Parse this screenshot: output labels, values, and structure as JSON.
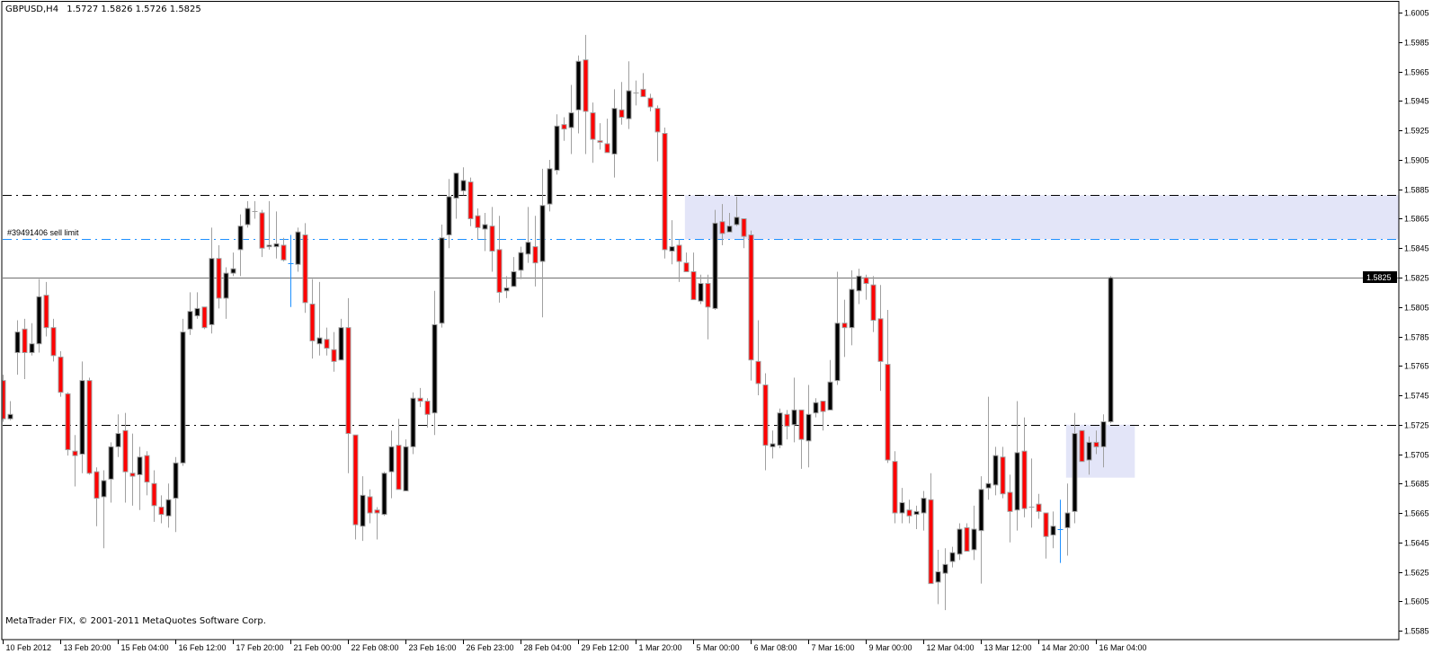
{
  "header": {
    "symbol_timeframe": "GBPUSD,H4",
    "ohlc": "1.5727 1.5826 1.5726 1.5825"
  },
  "footer": {
    "copyright": "MetaTrader FIX, © 2001-2011 MetaQuotes Software Corp."
  },
  "colors": {
    "bull_body": "#000000",
    "bear_body": "#ff0000",
    "wick": "#a0a0a0",
    "order_line": "#1e90ff",
    "zone_fill": "#e3e5f8",
    "level_line": "#000000",
    "bid_line": "#707070"
  },
  "chart_data": {
    "type": "candlestick",
    "symbol": "GBPUSD",
    "timeframe": "H4",
    "ylim": [
      1.558,
      1.6012
    ],
    "y_ticks": [
      "1.6005",
      "1.5985",
      "1.5965",
      "1.5945",
      "1.5925",
      "1.5905",
      "1.5885",
      "1.5865",
      "1.5845",
      "1.5825",
      "1.5805",
      "1.5785",
      "1.5765",
      "1.5745",
      "1.5725",
      "1.5705",
      "1.5685",
      "1.5665",
      "1.5645",
      "1.5625",
      "1.5605",
      "1.5585"
    ],
    "x_tick_labels": [
      "10 Feb 2012",
      "13 Feb 20:00",
      "15 Feb 04:00",
      "16 Feb 12:00",
      "17 Feb 20:00",
      "21 Feb 00:00",
      "22 Feb 08:00",
      "23 Feb 16:00",
      "26 Feb 23:00",
      "28 Feb 04:00",
      "29 Feb 12:00",
      "1 Mar 20:00",
      "5 Mar 00:00",
      "6 Mar 08:00",
      "7 Mar 16:00",
      "9 Mar 00:00",
      "12 Mar 04:00",
      "13 Mar 12:00",
      "14 Mar 20:00",
      "16 Mar 04:00"
    ],
    "bars_per_x_tick": 8,
    "current_price": "1.5825",
    "horizontal_levels": [
      {
        "price": 1.5881,
        "style": "dash-dot",
        "color": "#000000"
      },
      {
        "price": 1.5851,
        "style": "dash-dot",
        "color": "#1e90ff",
        "label": "#39491406 sell limit"
      },
      {
        "price": 1.5725,
        "style": "dash-dot",
        "color": "#000000"
      }
    ],
    "zones": [
      {
        "from_bar": 95,
        "to_bar": "right-edge",
        "top": 1.5881,
        "bottom": 1.5851
      },
      {
        "from_bar": 148,
        "to_bar": 157,
        "top": 1.5725,
        "bottom": 1.5689
      }
    ],
    "blue_doji_bars": [
      40,
      147
    ],
    "candles_ohlc": [
      [
        1.5755,
        1.5759,
        1.5727,
        1.5729
      ],
      [
        1.5729,
        1.5741,
        1.5728,
        1.5732
      ],
      [
        1.5774,
        1.5796,
        1.5759,
        1.5788
      ],
      [
        1.579,
        1.5797,
        1.5756,
        1.5774
      ],
      [
        1.5774,
        1.5794,
        1.5772,
        1.578
      ],
      [
        1.578,
        1.5824,
        1.5774,
        1.5812
      ],
      [
        1.5813,
        1.5822,
        1.5785,
        1.5791
      ],
      [
        1.5791,
        1.5797,
        1.5768,
        1.5772
      ],
      [
        1.5771,
        1.5775,
        1.5744,
        1.5747
      ],
      [
        1.5746,
        1.5747,
        1.5704,
        1.5708
      ],
      [
        1.5707,
        1.5718,
        1.5683,
        1.5704
      ],
      [
        1.5705,
        1.5768,
        1.5692,
        1.5755
      ],
      [
        1.5755,
        1.5757,
        1.5691,
        1.5692
      ],
      [
        1.5693,
        1.5696,
        1.5656,
        1.5675
      ],
      [
        1.5676,
        1.5694,
        1.5641,
        1.5687
      ],
      [
        1.5688,
        1.5713,
        1.5672,
        1.571
      ],
      [
        1.571,
        1.5732,
        1.5703,
        1.5719
      ],
      [
        1.5721,
        1.5733,
        1.5672,
        1.5693
      ],
      [
        1.5692,
        1.5719,
        1.567,
        1.569
      ],
      [
        1.5691,
        1.571,
        1.5667,
        1.5703
      ],
      [
        1.5704,
        1.5707,
        1.5677,
        1.5686
      ],
      [
        1.5685,
        1.5694,
        1.5659,
        1.567
      ],
      [
        1.5669,
        1.5677,
        1.5658,
        1.5664
      ],
      [
        1.5663,
        1.5685,
        1.5655,
        1.5674
      ],
      [
        1.5675,
        1.5703,
        1.5652,
        1.5699
      ],
      [
        1.5699,
        1.5797,
        1.5697,
        1.5788
      ],
      [
        1.579,
        1.5815,
        1.5786,
        1.5802
      ],
      [
        1.5799,
        1.5815,
        1.5797,
        1.5804
      ],
      [
        1.5805,
        1.5805,
        1.579,
        1.5791
      ],
      [
        1.5793,
        1.5859,
        1.5787,
        1.5838
      ],
      [
        1.5838,
        1.5847,
        1.5804,
        1.5811
      ],
      [
        1.5811,
        1.5832,
        1.5797,
        1.5828
      ],
      [
        1.5828,
        1.5842,
        1.5826,
        1.5831
      ],
      [
        1.5844,
        1.5868,
        1.5826,
        1.586
      ],
      [
        1.5861,
        1.5877,
        1.5859,
        1.5872
      ],
      [
        1.587,
        1.5877,
        1.5865,
        1.587
      ],
      [
        1.5869,
        1.5871,
        1.5839,
        1.5845
      ],
      [
        1.5846,
        1.5877,
        1.5844,
        1.5847
      ],
      [
        1.5846,
        1.587,
        1.5838,
        1.5848
      ],
      [
        1.5847,
        1.5852,
        1.5836,
        1.5837
      ],
      [
        1.5835,
        1.5854,
        1.5805,
        1.5835
      ],
      [
        1.5834,
        1.5859,
        1.5829,
        1.5856
      ],
      [
        1.5854,
        1.5862,
        1.5801,
        1.5808
      ],
      [
        1.5807,
        1.5824,
        1.577,
        1.5782
      ],
      [
        1.578,
        1.5822,
        1.5772,
        1.5784
      ],
      [
        1.5783,
        1.5791,
        1.5772,
        1.5777
      ],
      [
        1.5776,
        1.5788,
        1.5761,
        1.5768
      ],
      [
        1.5769,
        1.5797,
        1.5769,
        1.5791
      ],
      [
        1.5791,
        1.5811,
        1.5692,
        1.5719
      ],
      [
        1.5718,
        1.5718,
        1.5647,
        1.5657
      ],
      [
        1.5656,
        1.569,
        1.5646,
        1.5677
      ],
      [
        1.5676,
        1.5681,
        1.5658,
        1.5665
      ],
      [
        1.5667,
        1.5669,
        1.5647,
        1.5665
      ],
      [
        1.5664,
        1.5693,
        1.5663,
        1.5692
      ],
      [
        1.5693,
        1.5721,
        1.5675,
        1.571
      ],
      [
        1.5711,
        1.5729,
        1.5681,
        1.5681
      ],
      [
        1.568,
        1.5715,
        1.568,
        1.571
      ],
      [
        1.571,
        1.5747,
        1.5705,
        1.5743
      ],
      [
        1.5743,
        1.575,
        1.5737,
        1.5741
      ],
      [
        1.5741,
        1.5743,
        1.5723,
        1.5732
      ],
      [
        1.5733,
        1.5816,
        1.5718,
        1.5793
      ],
      [
        1.5794,
        1.5861,
        1.5791,
        1.5852
      ],
      [
        1.5854,
        1.5892,
        1.5845,
        1.588
      ],
      [
        1.5879,
        1.5896,
        1.5865,
        1.5896
      ],
      [
        1.5884,
        1.59,
        1.5881,
        1.5891
      ],
      [
        1.589,
        1.5893,
        1.586,
        1.5865
      ],
      [
        1.5867,
        1.5872,
        1.5851,
        1.5859
      ],
      [
        1.5858,
        1.5869,
        1.5843,
        1.5861
      ],
      [
        1.586,
        1.5873,
        1.5829,
        1.5843
      ],
      [
        1.5844,
        1.5867,
        1.5808,
        1.5815
      ],
      [
        1.5816,
        1.5826,
        1.5811,
        1.5818
      ],
      [
        1.5819,
        1.5839,
        1.5819,
        1.5829
      ],
      [
        1.583,
        1.5846,
        1.5824,
        1.5842
      ],
      [
        1.5841,
        1.5873,
        1.5835,
        1.5849
      ],
      [
        1.5846,
        1.5867,
        1.5819,
        1.5835
      ],
      [
        1.5836,
        1.5899,
        1.5798,
        1.5874
      ],
      [
        1.5875,
        1.5905,
        1.587,
        1.5899
      ],
      [
        1.5898,
        1.5936,
        1.5895,
        1.5928
      ],
      [
        1.5929,
        1.5934,
        1.5918,
        1.5926
      ],
      [
        1.5927,
        1.5956,
        1.5909,
        1.5937
      ],
      [
        1.5939,
        1.5976,
        1.5923,
        1.5972
      ],
      [
        1.5973,
        1.599,
        1.5909,
        1.5938
      ],
      [
        1.5937,
        1.5944,
        1.5903,
        1.5919
      ],
      [
        1.5918,
        1.593,
        1.5912,
        1.5917
      ],
      [
        1.5916,
        1.5933,
        1.591,
        1.591
      ],
      [
        1.5909,
        1.5953,
        1.5893,
        1.594
      ],
      [
        1.5939,
        1.5958,
        1.5929,
        1.5934
      ],
      [
        1.5933,
        1.5972,
        1.5926,
        1.5952
      ],
      [
        1.5951,
        1.5959,
        1.5942,
        1.5951
      ],
      [
        1.5953,
        1.5964,
        1.5948,
        1.5948
      ],
      [
        1.5947,
        1.595,
        1.5938,
        1.5941
      ],
      [
        1.594,
        1.5942,
        1.5904,
        1.5924
      ],
      [
        1.5923,
        1.5927,
        1.5838,
        1.5844
      ],
      [
        1.5843,
        1.5864,
        1.5834,
        1.5846
      ],
      [
        1.5847,
        1.5851,
        1.5822,
        1.5836
      ],
      [
        1.5835,
        1.5842,
        1.5829,
        1.5829
      ],
      [
        1.5829,
        1.5842,
        1.581,
        1.581
      ],
      [
        1.5809,
        1.5827,
        1.5807,
        1.5821
      ],
      [
        1.5821,
        1.5827,
        1.5783,
        1.5805
      ],
      [
        1.5804,
        1.5871,
        1.5803,
        1.5862
      ],
      [
        1.5863,
        1.5875,
        1.5847,
        1.5855
      ],
      [
        1.5856,
        1.5869,
        1.5856,
        1.586
      ],
      [
        1.5861,
        1.588,
        1.586,
        1.5866
      ],
      [
        1.5865,
        1.5865,
        1.5845,
        1.5853
      ],
      [
        1.5854,
        1.5857,
        1.5755,
        1.5769
      ],
      [
        1.5768,
        1.5796,
        1.5745,
        1.5753
      ],
      [
        1.5752,
        1.576,
        1.5694,
        1.5711
      ],
      [
        1.571,
        1.5721,
        1.5702,
        1.5712
      ],
      [
        1.5711,
        1.5736,
        1.5709,
        1.5733
      ],
      [
        1.5732,
        1.5735,
        1.5715,
        1.5724
      ],
      [
        1.5725,
        1.5757,
        1.5713,
        1.5735
      ],
      [
        1.5735,
        1.5735,
        1.5695,
        1.5715
      ],
      [
        1.5714,
        1.5752,
        1.5696,
        1.5732
      ],
      [
        1.5733,
        1.5743,
        1.573,
        1.574
      ],
      [
        1.5741,
        1.5741,
        1.5721,
        1.5734
      ],
      [
        1.5735,
        1.5769,
        1.5735,
        1.5754
      ],
      [
        1.5755,
        1.5829,
        1.5752,
        1.5794
      ],
      [
        1.5794,
        1.581,
        1.5771,
        1.5791
      ],
      [
        1.5791,
        1.583,
        1.5779,
        1.5817
      ],
      [
        1.5816,
        1.5831,
        1.5807,
        1.5826
      ],
      [
        1.5825,
        1.5827,
        1.581,
        1.5821
      ],
      [
        1.582,
        1.5826,
        1.5788,
        1.5796
      ],
      [
        1.5797,
        1.582,
        1.5748,
        1.5768
      ],
      [
        1.5766,
        1.5803,
        1.5699,
        1.5701
      ],
      [
        1.57,
        1.5707,
        1.5658,
        1.5665
      ],
      [
        1.5665,
        1.5682,
        1.5658,
        1.5672
      ],
      [
        1.5667,
        1.5674,
        1.5658,
        1.5663
      ],
      [
        1.5664,
        1.567,
        1.5654,
        1.5666
      ],
      [
        1.5665,
        1.568,
        1.5653,
        1.5675
      ],
      [
        1.5674,
        1.5692,
        1.5617,
        1.5617
      ],
      [
        1.5618,
        1.564,
        1.5603,
        1.5625
      ],
      [
        1.5624,
        1.5641,
        1.5599,
        1.563
      ],
      [
        1.5632,
        1.5642,
        1.5628,
        1.5638
      ],
      [
        1.5637,
        1.5658,
        1.5633,
        1.5654
      ],
      [
        1.5655,
        1.5658,
        1.5639,
        1.5639
      ],
      [
        1.564,
        1.567,
        1.5633,
        1.5654
      ],
      [
        1.5653,
        1.569,
        1.5617,
        1.5681
      ],
      [
        1.5682,
        1.5744,
        1.5674,
        1.5685
      ],
      [
        1.5684,
        1.571,
        1.5677,
        1.5704
      ],
      [
        1.5703,
        1.571,
        1.5675,
        1.5678
      ],
      [
        1.5679,
        1.5691,
        1.5645,
        1.5666
      ],
      [
        1.5667,
        1.5741,
        1.5653,
        1.5706
      ],
      [
        1.5707,
        1.573,
        1.5662,
        1.5668
      ],
      [
        1.5669,
        1.5702,
        1.5655,
        1.5669
      ],
      [
        1.5671,
        1.5678,
        1.5661,
        1.5666
      ],
      [
        1.5665,
        1.5665,
        1.5634,
        1.5649
      ],
      [
        1.565,
        1.5666,
        1.5641,
        1.5656
      ],
      [
        1.5654,
        1.5674,
        1.5631,
        1.5654
      ],
      [
        1.5655,
        1.5685,
        1.5636,
        1.5665
      ],
      [
        1.5666,
        1.5733,
        1.5658,
        1.5719
      ],
      [
        1.5721,
        1.5721,
        1.57,
        1.57
      ],
      [
        1.5701,
        1.5717,
        1.5691,
        1.5713
      ],
      [
        1.5713,
        1.5721,
        1.5705,
        1.571
      ],
      [
        1.571,
        1.5732,
        1.5696,
        1.5727
      ],
      [
        1.5727,
        1.5826,
        1.5726,
        1.5825
      ]
    ]
  }
}
